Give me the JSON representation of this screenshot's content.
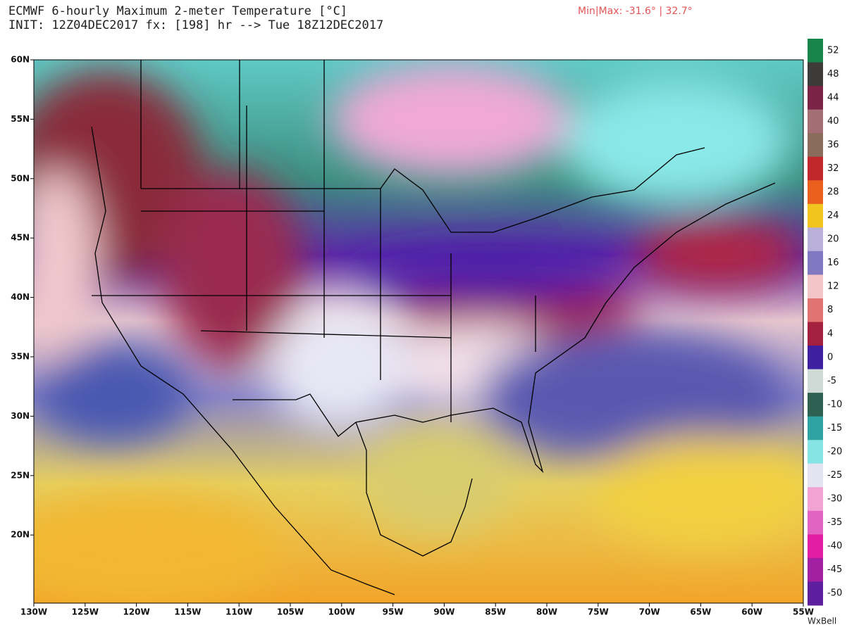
{
  "header": {
    "title": "ECMWF 6-hourly Maximum 2-meter Temperature [°C]",
    "subtitle": "INIT: 12Z04DEC2017 fx: [198] hr --> Tue 18Z12DEC2017",
    "minmax": "Min|Max: -31.6° | 32.7°"
  },
  "map": {
    "lat_labels": [
      "60N",
      "55N",
      "50N",
      "45N",
      "40N",
      "35N",
      "30N",
      "25N",
      "20N"
    ],
    "lon_labels": [
      "130W",
      "125W",
      "120W",
      "115W",
      "110W",
      "105W",
      "100W",
      "95W",
      "90W",
      "85W",
      "80W",
      "75W",
      "70W",
      "65W",
      "60W",
      "55W"
    ]
  },
  "colorbar": {
    "labels": [
      52,
      48,
      44,
      40,
      36,
      32,
      28,
      24,
      20,
      16,
      12,
      8,
      4,
      0,
      -5,
      -10,
      -15,
      -20,
      -25,
      -30,
      -35,
      -40,
      -45,
      -50
    ],
    "colors": [
      "#17844a",
      "#3d3a3a",
      "#7a2346",
      "#a46f74",
      "#8a6b5c",
      "#c0282c",
      "#e8601c",
      "#f2c51e",
      "#b8b0d8",
      "#8078c0",
      "#f2c6c6",
      "#e27373",
      "#a3203f",
      "#3e1fa0",
      "#cfd9d6",
      "#2f6152",
      "#2fa3a3",
      "#86e4e4",
      "#e3e3f2",
      "#f2a3d3",
      "#e263c2",
      "#e21fa4",
      "#a320a3",
      "#5e1f9f"
    ]
  },
  "footer": {
    "credit": "WxBell"
  }
}
